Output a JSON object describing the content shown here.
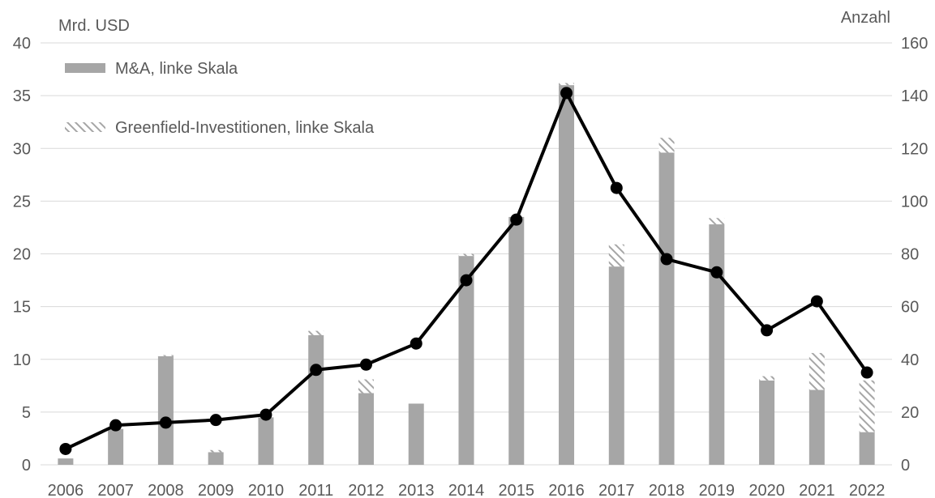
{
  "chart_data": {
    "type": "bar",
    "categories": [
      "2006",
      "2007",
      "2008",
      "2009",
      "2010",
      "2011",
      "2012",
      "2013",
      "2014",
      "2015",
      "2016",
      "2017",
      "2018",
      "2019",
      "2020",
      "2021",
      "2022"
    ],
    "y_left": {
      "label": "Mrd. USD",
      "ylim": [
        0,
        40
      ],
      "ticks": [
        0,
        5,
        10,
        15,
        20,
        25,
        30,
        35,
        40
      ]
    },
    "y_right": {
      "label": "Anzahl",
      "ylim": [
        0,
        160
      ],
      "ticks": [
        0,
        20,
        40,
        60,
        80,
        100,
        120,
        140,
        160
      ]
    },
    "series": [
      {
        "name": "M&A, linke Skala",
        "type": "bar",
        "stack": "left",
        "axis": "left",
        "color": "#a6a6a6",
        "values": [
          0.6,
          3.4,
          10.3,
          1.2,
          4.5,
          12.3,
          6.8,
          5.8,
          19.8,
          23.5,
          36.0,
          18.8,
          29.6,
          22.8,
          8.0,
          7.1,
          3.1
        ]
      },
      {
        "name": "Greenfield-Investitionen, linke Skala",
        "type": "bar",
        "stack": "left",
        "axis": "left",
        "color": "#a6a6a6",
        "pattern": "hatched",
        "values": [
          0.0,
          0.0,
          0.1,
          0.2,
          0.0,
          0.4,
          1.3,
          0.0,
          0.2,
          0.0,
          0.2,
          2.1,
          1.4,
          0.6,
          0.4,
          3.5,
          4.9
        ]
      },
      {
        "type": "line",
        "axis": "right",
        "color": "#000000",
        "values": [
          6,
          15,
          16,
          17,
          19,
          36,
          38,
          46,
          70,
          93,
          141,
          105,
          78,
          73,
          51,
          62,
          35
        ]
      }
    ],
    "legend": {
      "position": "top-left",
      "entries": [
        "M&A, linke Skala",
        "Greenfield-Investitionen, linke Skala"
      ]
    },
    "grid": true
  }
}
